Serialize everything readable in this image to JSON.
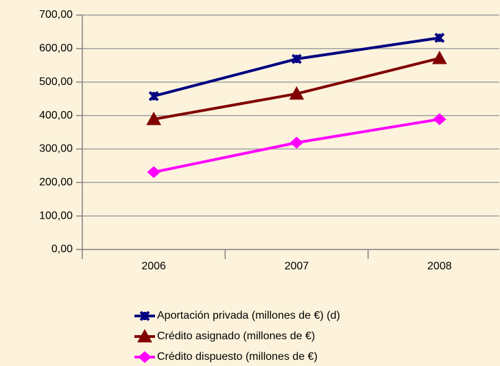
{
  "chart_data": {
    "type": "line",
    "categories": [
      "2006",
      "2007",
      "2008"
    ],
    "series": [
      {
        "name": "Aportación privada (millones de €) (d)",
        "color": "#000080",
        "marker": "x",
        "values": [
          458,
          569,
          632
        ]
      },
      {
        "name": "Crédito asignado (millones de €)",
        "color": "#800000",
        "marker": "triangle",
        "values": [
          389,
          465,
          571
        ]
      },
      {
        "name": "Crédito dispuesto (millones de €)",
        "color": "#ff00ff",
        "marker": "diamond",
        "values": [
          231,
          319,
          389
        ]
      }
    ],
    "ylim": [
      0,
      700
    ],
    "yticks": [
      {
        "value": 0,
        "label": "0,00"
      },
      {
        "value": 100,
        "label": "100,00"
      },
      {
        "value": 200,
        "label": "200,00"
      },
      {
        "value": 300,
        "label": "300,00"
      },
      {
        "value": 400,
        "label": "400,00"
      },
      {
        "value": 500,
        "label": "500,00"
      },
      {
        "value": 600,
        "label": "600,00"
      },
      {
        "value": 700,
        "label": "700,00"
      }
    ],
    "grid": true,
    "legend": "bottom"
  }
}
